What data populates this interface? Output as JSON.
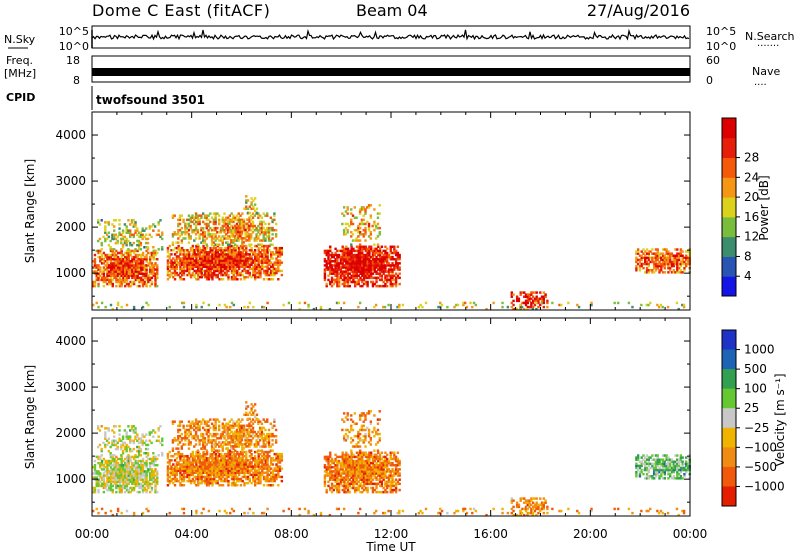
{
  "header": {
    "station": "Dome C East (fitACF)",
    "beam": "Beam 04",
    "date": "27/Aug/2016"
  },
  "top_panels": {
    "nsky_label": "N.Sky",
    "nsky_ticks": [
      "10^5",
      "10^0"
    ],
    "nsearch_label": "N.Search",
    "nsearch_ticks": [
      "10^5",
      "10^0"
    ],
    "freq_label": "Freq.",
    "freq_unit": "[MHz]",
    "freq_ticks": [
      "18",
      "8"
    ],
    "nave_label": "Nave",
    "nave_ticks": [
      "60",
      "0"
    ],
    "cpid_label": "CPID",
    "cpid_value": "twofsound 3501",
    "dots": "·······",
    "dots_short": "····"
  },
  "chart_data": [
    {
      "type": "heatmap",
      "name": "power",
      "ylabel": "Slant Range [km]",
      "xlabel": "Time UT",
      "ylim": [
        200,
        4500
      ],
      "yticks": [
        1000,
        2000,
        3000,
        4000
      ],
      "xticks": [
        "00:00",
        "04:00",
        "08:00",
        "12:00",
        "16:00",
        "20:00",
        "00:00"
      ],
      "colorbar": {
        "label": "Power [dB]",
        "ticks": [
          "4",
          "8",
          "12",
          "16",
          "20",
          "24",
          "28"
        ],
        "colors": [
          "#1414e6",
          "#2855b4",
          "#3c8c6e",
          "#78be3c",
          "#dcd21e",
          "#f59614",
          "#f55a0a",
          "#e61e0a",
          "#dc0000"
        ]
      }
    },
    {
      "type": "heatmap",
      "name": "velocity",
      "ylabel": "Slant Range [km]",
      "xlabel": "Time UT",
      "ylim": [
        200,
        4500
      ],
      "yticks": [
        1000,
        2000,
        3000,
        4000
      ],
      "xticks": [
        "00:00",
        "04:00",
        "08:00",
        "12:00",
        "16:00",
        "20:00",
        "00:00"
      ],
      "colorbar": {
        "label": "Velocity [m s⁻¹]",
        "ticks": [
          "1000",
          "500",
          "100",
          "25",
          "−25",
          "−100",
          "−500",
          "−1000"
        ],
        "colors": [
          "#1e32c8",
          "#1e64b4",
          "#32a050",
          "#64c832",
          "#c8c8c8",
          "#f0b400",
          "#f08c14",
          "#f05a0a",
          "#e61e00"
        ]
      }
    }
  ]
}
